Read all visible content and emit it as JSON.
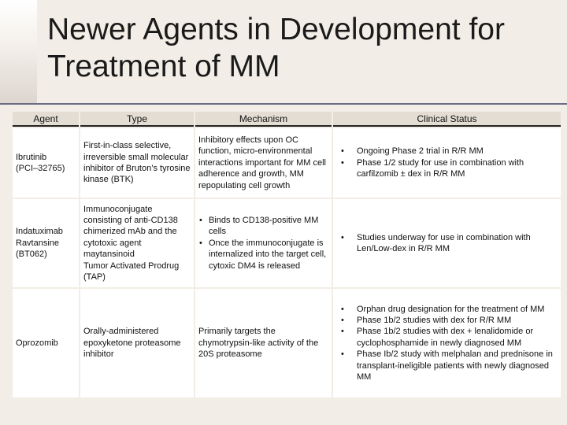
{
  "slide": {
    "title_line1": "Newer Agents in Development for",
    "title_line2": "Treatment of MM"
  },
  "table": {
    "headers": [
      "Agent",
      "Type",
      "Mechanism",
      "Clinical Status"
    ],
    "rows": [
      {
        "agent_line1": "Ibrutinib",
        "agent_line2": "(PCI–32765)",
        "type": "First-in-class selective, irreversible small molecular inhibitor of Bruton’s tyrosine kinase (BTK)",
        "mechanism": "Inhibitory effects upon OC function, micro-environmental interactions important for MM cell adherence and growth, MM repopulating cell growth",
        "status": [
          "Ongoing Phase 2 trial in R/R MM",
          "Phase 1/2 study for use in combination with carfilzomib ± dex in R/R MM"
        ]
      },
      {
        "agent_line1": "Indatuximab",
        "agent_line2": "Ravtansine",
        "agent_line3": "(BT062)",
        "type_line1": "Immunoconjugate consisting of  anti-CD138 chimerized mAb and the cytotoxic agent maytansinoid",
        "type_line2": "Tumor Activated Prodrug (TAP)",
        "mechanism": [
          "Binds to CD138-positive MM cells",
          "Once the immunoconjugate is internalized into the target cell, cytoxic DM4 is released"
        ],
        "status": [
          "Studies underway for use in combination with Len/Low-dex in R/R MM"
        ]
      },
      {
        "agent": "Oprozomib",
        "type": "Orally-administered epoxyketone proteasome inhibitor",
        "mechanism": "Primarily targets the chymotrypsin-like activity of the 20S proteasome",
        "status": [
          "Orphan drug designation for the treatment of MM",
          "Phase 1b/2 studies with dex for R/R MM",
          "Phase 1b/2 studies with dex + lenalidomide or cyclophosphamide in newly diagnosed MM",
          "Phase Ib/2 study with melphalan and prednisone in transplant-ineligible patients with newly diagnosed MM"
        ]
      }
    ]
  }
}
